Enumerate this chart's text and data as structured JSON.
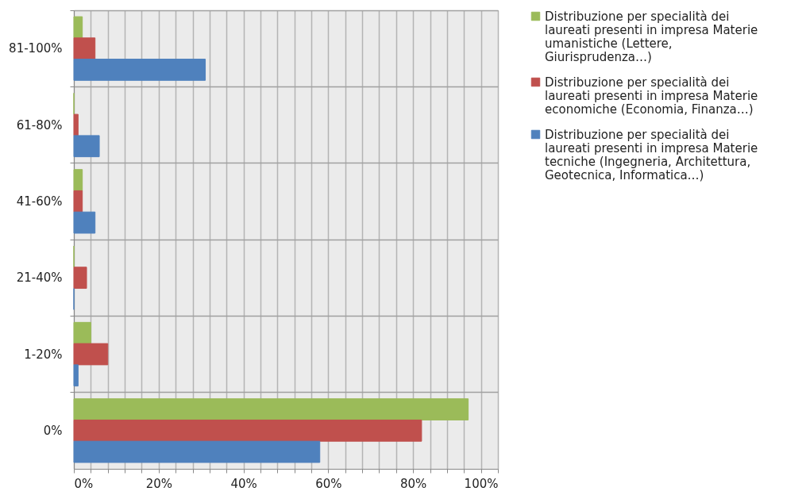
{
  "chart_data": {
    "type": "bar",
    "orientation": "horizontal",
    "categories": [
      "81-100%",
      "61-80%",
      "41-60%",
      "21-40%",
      "1-20%",
      "0%"
    ],
    "series": [
      {
        "name": "Distribuzione per specialità dei laureati presenti in impresa Materie umanistiche (Lettere, Giurisprudenza…)",
        "color": "#9bbb59",
        "values": [
          2,
          0,
          2,
          0,
          4,
          93
        ]
      },
      {
        "name": "Distribuzione per specialità dei laureati presenti in impresa Materie economiche (Economia, Finanza…)",
        "color": "#c0504d",
        "values": [
          5,
          1,
          2,
          3,
          8,
          82
        ]
      },
      {
        "name": "Distribuzione per specialità dei laureati presenti in impresa Materie tecniche (Ingegneria, Architettura, Geotecnica, Informatica…)",
        "color": "#4f81bd",
        "values": [
          31,
          6,
          5,
          0,
          1,
          58
        ]
      }
    ],
    "xlim": [
      0,
      100
    ],
    "xticks": [
      {
        "value": 0,
        "label": "0%"
      },
      {
        "value": 4,
        "label": null
      },
      {
        "value": 8,
        "label": null
      },
      {
        "value": 12,
        "label": null
      },
      {
        "value": 16,
        "label": null
      },
      {
        "value": 20,
        "label": "20%"
      },
      {
        "value": 24,
        "label": null
      },
      {
        "value": 28,
        "label": null
      },
      {
        "value": 32,
        "label": null
      },
      {
        "value": 36,
        "label": null
      },
      {
        "value": 40,
        "label": "40%"
      },
      {
        "value": 44,
        "label": null
      },
      {
        "value": 48,
        "label": null
      },
      {
        "value": 52,
        "label": null
      },
      {
        "value": 56,
        "label": null
      },
      {
        "value": 60,
        "label": "60%"
      },
      {
        "value": 64,
        "label": null
      },
      {
        "value": 68,
        "label": null
      },
      {
        "value": 72,
        "label": null
      },
      {
        "value": 76,
        "label": null
      },
      {
        "value": 80,
        "label": "80%"
      },
      {
        "value": 84,
        "label": null
      },
      {
        "value": 88,
        "label": null
      },
      {
        "value": 92,
        "label": null
      },
      {
        "value": 96,
        "label": null
      },
      {
        "value": 100,
        "label": "100%"
      }
    ],
    "grid": true,
    "legend": "right"
  }
}
